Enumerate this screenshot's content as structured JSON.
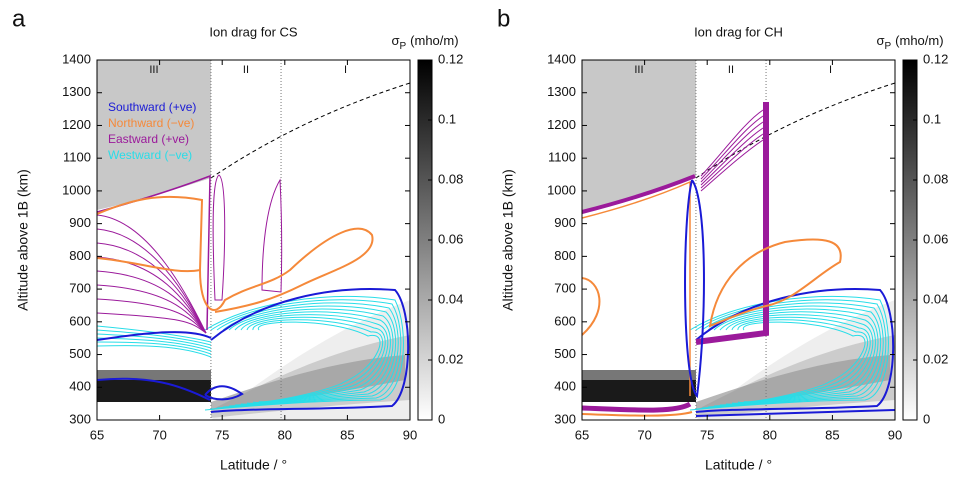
{
  "chart_data": [
    {
      "type": "contour",
      "panel_label": "a",
      "title": "Ion drag for CS",
      "xlabel": "Latitude / °",
      "ylabel": "Altitude above 1B (km)",
      "xlim": [
        65,
        90
      ],
      "ylim": [
        300,
        1400
      ],
      "xticks": [
        65,
        70,
        75,
        80,
        85,
        90
      ],
      "yticks": [
        300,
        400,
        500,
        600,
        700,
        800,
        900,
        1000,
        1100,
        1200,
        1300,
        1400
      ],
      "colorbar": {
        "symbol": "σ",
        "subscript": "P",
        "unit": "(mho/m)",
        "lim": [
          0,
          0.12
        ],
        "ticks": [
          0,
          0.02,
          0.04,
          0.06,
          0.08,
          0.1,
          0.12
        ]
      },
      "regions": {
        "labels": [
          "III",
          "II",
          "I"
        ],
        "boundaries": [
          74.1,
          79.7
        ]
      },
      "legend": true,
      "series": [
        {
          "name": "Southward (+ve)",
          "color": "#1a1ad6"
        },
        {
          "name": "Northward (−ve)",
          "color": "#f5893a"
        },
        {
          "name": "Eastward (+ve)",
          "color": "#9b1a9b"
        },
        {
          "name": "Westward (−ve)",
          "color": "#28dde8"
        }
      ]
    },
    {
      "type": "contour",
      "panel_label": "b",
      "title": "Ion drag for CH",
      "xlabel": "Latitude / °",
      "ylabel": "Altitude above 1B (km)",
      "xlim": [
        65,
        90
      ],
      "ylim": [
        300,
        1400
      ],
      "xticks": [
        65,
        70,
        75,
        80,
        85,
        90
      ],
      "yticks": [
        300,
        400,
        500,
        600,
        700,
        800,
        900,
        1000,
        1100,
        1200,
        1300,
        1400
      ],
      "colorbar": {
        "symbol": "σ",
        "subscript": "P",
        "unit": "(mho/m)",
        "lim": [
          0,
          0.12
        ],
        "ticks": [
          0,
          0.02,
          0.04,
          0.06,
          0.08,
          0.1,
          0.12
        ]
      },
      "regions": {
        "labels": [
          "III",
          "II",
          "I"
        ],
        "boundaries": [
          74.1,
          79.7
        ]
      },
      "legend": false,
      "series": [
        {
          "color": "#1a1ad6"
        },
        {
          "color": "#f5893a"
        },
        {
          "color": "#9b1a9b"
        },
        {
          "color": "#28dde8"
        }
      ]
    }
  ]
}
